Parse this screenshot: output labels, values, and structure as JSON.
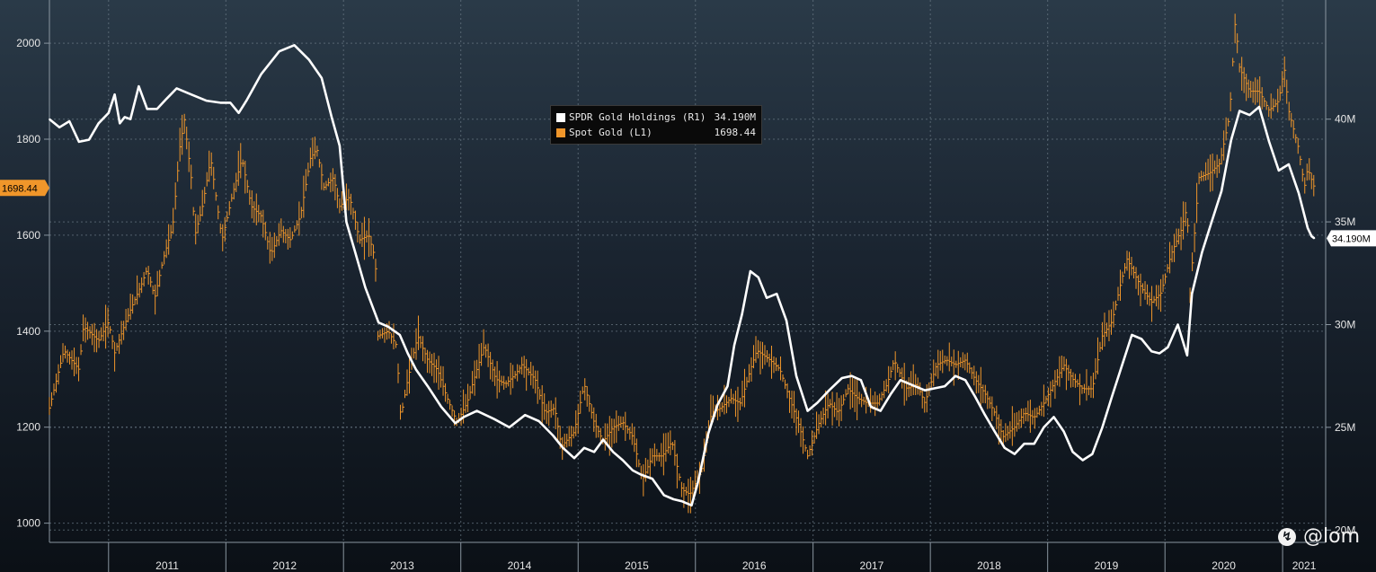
{
  "chart_data": {
    "type": "line",
    "x_axis": {
      "type": "date",
      "range": [
        "2010-07-01",
        "2021-05-15"
      ],
      "tick_labels": [
        "2011",
        "2012",
        "2013",
        "2014",
        "2015",
        "2016",
        "2017",
        "2018",
        "2019",
        "2020",
        "2021"
      ]
    },
    "y_left": {
      "range": [
        960,
        2090
      ],
      "ticks": [
        1000,
        1200,
        1400,
        1600,
        1800,
        2000
      ]
    },
    "y_right": {
      "range": [
        19.4,
        45.8
      ],
      "unit": "M",
      "ticks": [
        20,
        25,
        30,
        35,
        40
      ],
      "tick_labels": [
        "20M",
        "25M",
        "30M",
        "35M",
        "40M"
      ]
    },
    "grid": true,
    "legend": {
      "placement": "center-top",
      "entries": [
        {
          "label": "SPDR Gold Holdings (R1)",
          "value": "34.190M",
          "color": "#ffffff"
        },
        {
          "label": "Spot Gold (L1)",
          "value": "1698.44",
          "color": "#f0962a"
        }
      ]
    },
    "last_value_tags": {
      "left": "1698.44",
      "right": "34.190M"
    },
    "series": [
      {
        "name": "SPDR Gold Holdings (R1)",
        "axis": "right",
        "style": "line",
        "color": "#ffffff",
        "unit": "M",
        "points": [
          [
            "2010-07-01",
            40.0
          ],
          [
            "2010-08-01",
            39.6
          ],
          [
            "2010-09-01",
            39.9
          ],
          [
            "2010-10-01",
            38.9
          ],
          [
            "2010-11-01",
            39.0
          ],
          [
            "2010-12-01",
            39.8
          ],
          [
            "2011-01-01",
            40.3
          ],
          [
            "2011-01-20",
            41.2
          ],
          [
            "2011-02-05",
            39.8
          ],
          [
            "2011-02-20",
            40.1
          ],
          [
            "2011-03-10",
            40.0
          ],
          [
            "2011-04-05",
            41.6
          ],
          [
            "2011-05-01",
            40.5
          ],
          [
            "2011-06-01",
            40.5
          ],
          [
            "2011-07-01",
            41.0
          ],
          [
            "2011-08-01",
            41.5
          ],
          [
            "2011-09-15",
            41.2
          ],
          [
            "2011-11-01",
            40.9
          ],
          [
            "2011-12-15",
            40.8
          ],
          [
            "2012-01-15",
            40.8
          ],
          [
            "2012-02-10",
            40.3
          ],
          [
            "2012-03-05",
            40.9
          ],
          [
            "2012-04-20",
            42.2
          ],
          [
            "2012-06-15",
            43.3
          ],
          [
            "2012-08-01",
            43.6
          ],
          [
            "2012-09-15",
            42.9
          ],
          [
            "2012-10-25",
            42.0
          ],
          [
            "2012-11-25",
            40.1
          ],
          [
            "2012-12-20",
            38.7
          ],
          [
            "2013-01-10",
            35.0
          ],
          [
            "2013-02-05",
            33.6
          ],
          [
            "2013-03-10",
            31.8
          ],
          [
            "2013-04-20",
            30.1
          ],
          [
            "2013-05-20",
            29.9
          ],
          [
            "2013-06-25",
            29.5
          ],
          [
            "2013-07-20",
            28.6
          ],
          [
            "2013-08-15",
            27.8
          ],
          [
            "2013-09-20",
            27.0
          ],
          [
            "2013-11-01",
            26.0
          ],
          [
            "2013-12-15",
            25.2
          ],
          [
            "2014-01-10",
            25.5
          ],
          [
            "2014-02-20",
            25.8
          ],
          [
            "2014-04-15",
            25.4
          ],
          [
            "2014-06-01",
            25.0
          ],
          [
            "2014-07-20",
            25.6
          ],
          [
            "2014-09-01",
            25.3
          ],
          [
            "2014-10-15",
            24.6
          ],
          [
            "2014-11-15",
            24.0
          ],
          [
            "2014-12-20",
            23.5
          ],
          [
            "2015-01-20",
            24.0
          ],
          [
            "2015-02-20",
            23.8
          ],
          [
            "2015-03-20",
            24.4
          ],
          [
            "2015-04-20",
            23.8
          ],
          [
            "2015-05-20",
            23.4
          ],
          [
            "2015-06-20",
            22.9
          ],
          [
            "2015-07-15",
            22.7
          ],
          [
            "2015-08-20",
            22.5
          ],
          [
            "2015-09-25",
            21.7
          ],
          [
            "2015-10-25",
            21.5
          ],
          [
            "2015-11-20",
            21.4
          ],
          [
            "2015-12-20",
            21.2
          ],
          [
            "2016-01-10",
            22.4
          ],
          [
            "2016-02-10",
            24.7
          ],
          [
            "2016-03-10",
            26.1
          ],
          [
            "2016-04-10",
            27.0
          ],
          [
            "2016-05-01",
            29.0
          ],
          [
            "2016-05-25",
            30.5
          ],
          [
            "2016-06-20",
            32.6
          ],
          [
            "2016-07-15",
            32.3
          ],
          [
            "2016-08-10",
            31.3
          ],
          [
            "2016-09-10",
            31.5
          ],
          [
            "2016-10-10",
            30.2
          ],
          [
            "2016-11-10",
            27.5
          ],
          [
            "2016-12-15",
            25.8
          ],
          [
            "2017-01-15",
            26.2
          ],
          [
            "2017-02-20",
            26.8
          ],
          [
            "2017-04-01",
            27.4
          ],
          [
            "2017-05-01",
            27.5
          ],
          [
            "2017-05-30",
            27.3
          ],
          [
            "2017-06-30",
            26.0
          ],
          [
            "2017-07-30",
            25.8
          ],
          [
            "2017-08-30",
            26.6
          ],
          [
            "2017-09-30",
            27.3
          ],
          [
            "2017-10-30",
            27.1
          ],
          [
            "2017-12-15",
            26.8
          ],
          [
            "2018-01-15",
            26.9
          ],
          [
            "2018-02-15",
            27.0
          ],
          [
            "2018-03-20",
            27.5
          ],
          [
            "2018-04-20",
            27.3
          ],
          [
            "2018-05-20",
            26.5
          ],
          [
            "2018-06-20",
            25.6
          ],
          [
            "2018-07-20",
            24.8
          ],
          [
            "2018-08-20",
            24.0
          ],
          [
            "2018-09-20",
            23.7
          ],
          [
            "2018-10-20",
            24.2
          ],
          [
            "2018-11-20",
            24.2
          ],
          [
            "2018-12-20",
            25.0
          ],
          [
            "2019-01-20",
            25.5
          ],
          [
            "2019-02-20",
            24.8
          ],
          [
            "2019-03-20",
            23.8
          ],
          [
            "2019-04-20",
            23.4
          ],
          [
            "2019-05-20",
            23.7
          ],
          [
            "2019-06-20",
            25.0
          ],
          [
            "2019-07-20",
            26.5
          ],
          [
            "2019-08-20",
            28.0
          ],
          [
            "2019-09-20",
            29.5
          ],
          [
            "2019-10-20",
            29.3
          ],
          [
            "2019-11-20",
            28.7
          ],
          [
            "2019-12-15",
            28.6
          ],
          [
            "2020-01-10",
            28.9
          ],
          [
            "2020-02-10",
            30.0
          ],
          [
            "2020-03-10",
            28.5
          ],
          [
            "2020-03-25",
            31.5
          ],
          [
            "2020-04-25",
            33.5
          ],
          [
            "2020-05-25",
            35.0
          ],
          [
            "2020-06-25",
            36.5
          ],
          [
            "2020-07-25",
            39.0
          ],
          [
            "2020-08-20",
            40.4
          ],
          [
            "2020-09-20",
            40.2
          ],
          [
            "2020-10-20",
            40.6
          ],
          [
            "2020-11-20",
            38.9
          ],
          [
            "2020-12-20",
            37.5
          ],
          [
            "2021-01-20",
            37.8
          ],
          [
            "2021-02-20",
            36.4
          ],
          [
            "2021-03-20",
            34.7
          ],
          [
            "2021-04-01",
            34.3
          ],
          [
            "2021-04-10",
            34.2
          ]
        ]
      },
      {
        "name": "Spot Gold (L1)",
        "axis": "left",
        "style": "high-low bars",
        "color": "#f0962a",
        "points": [
          [
            "2010-07-01",
            1240
          ],
          [
            "2010-08-15",
            1360
          ],
          [
            "2010-10-01",
            1320
          ],
          [
            "2010-10-15",
            1410
          ],
          [
            "2010-12-01",
            1380
          ],
          [
            "2011-01-01",
            1420
          ],
          [
            "2011-01-20",
            1355
          ],
          [
            "2011-03-01",
            1430
          ],
          [
            "2011-04-15",
            1500
          ],
          [
            "2011-05-01",
            1530
          ],
          [
            "2011-05-25",
            1470
          ],
          [
            "2011-06-20",
            1550
          ],
          [
            "2011-07-20",
            1620
          ],
          [
            "2011-08-10",
            1780
          ],
          [
            "2011-08-25",
            1840
          ],
          [
            "2011-09-15",
            1720
          ],
          [
            "2011-09-27",
            1600
          ],
          [
            "2011-10-20",
            1660
          ],
          [
            "2011-11-15",
            1760
          ],
          [
            "2011-12-20",
            1590
          ],
          [
            "2012-01-20",
            1680
          ],
          [
            "2012-02-20",
            1760
          ],
          [
            "2012-03-20",
            1660
          ],
          [
            "2012-04-20",
            1640
          ],
          [
            "2012-05-20",
            1560
          ],
          [
            "2012-06-20",
            1610
          ],
          [
            "2012-07-20",
            1590
          ],
          [
            "2012-08-20",
            1640
          ],
          [
            "2012-09-20",
            1760
          ],
          [
            "2012-10-10",
            1780
          ],
          [
            "2012-11-01",
            1700
          ],
          [
            "2012-12-01",
            1720
          ],
          [
            "2012-12-20",
            1660
          ],
          [
            "2013-01-20",
            1680
          ],
          [
            "2013-02-20",
            1590
          ],
          [
            "2013-03-20",
            1600
          ],
          [
            "2013-04-10",
            1550
          ],
          [
            "2013-04-18",
            1390
          ],
          [
            "2013-05-20",
            1400
          ],
          [
            "2013-06-15",
            1370
          ],
          [
            "2013-06-28",
            1220
          ],
          [
            "2013-07-20",
            1300
          ],
          [
            "2013-08-20",
            1390
          ],
          [
            "2013-09-20",
            1340
          ],
          [
            "2013-10-20",
            1320
          ],
          [
            "2013-11-20",
            1260
          ],
          [
            "2013-12-20",
            1210
          ],
          [
            "2014-01-20",
            1250
          ],
          [
            "2014-02-20",
            1320
          ],
          [
            "2014-03-15",
            1370
          ],
          [
            "2014-04-20",
            1300
          ],
          [
            "2014-05-20",
            1290
          ],
          [
            "2014-06-20",
            1310
          ],
          [
            "2014-07-10",
            1330
          ],
          [
            "2014-08-20",
            1300
          ],
          [
            "2014-09-20",
            1230
          ],
          [
            "2014-10-20",
            1240
          ],
          [
            "2014-11-10",
            1160
          ],
          [
            "2014-12-20",
            1190
          ],
          [
            "2015-01-20",
            1290
          ],
          [
            "2015-02-20",
            1210
          ],
          [
            "2015-03-20",
            1170
          ],
          [
            "2015-04-20",
            1200
          ],
          [
            "2015-05-20",
            1210
          ],
          [
            "2015-06-20",
            1180
          ],
          [
            "2015-07-20",
            1090
          ],
          [
            "2015-08-20",
            1140
          ],
          [
            "2015-09-20",
            1140
          ],
          [
            "2015-10-20",
            1170
          ],
          [
            "2015-11-20",
            1070
          ],
          [
            "2015-12-15",
            1060
          ],
          [
            "2016-01-20",
            1110
          ],
          [
            "2016-02-20",
            1230
          ],
          [
            "2016-03-20",
            1240
          ],
          [
            "2016-04-20",
            1260
          ],
          [
            "2016-05-20",
            1250
          ],
          [
            "2016-06-20",
            1320
          ],
          [
            "2016-07-10",
            1360
          ],
          [
            "2016-08-20",
            1340
          ],
          [
            "2016-09-20",
            1320
          ],
          [
            "2016-10-20",
            1260
          ],
          [
            "2016-11-20",
            1200
          ],
          [
            "2016-12-15",
            1140
          ],
          [
            "2017-01-20",
            1210
          ],
          [
            "2017-02-20",
            1250
          ],
          [
            "2017-03-20",
            1230
          ],
          [
            "2017-04-20",
            1280
          ],
          [
            "2017-05-20",
            1260
          ],
          [
            "2017-06-20",
            1250
          ],
          [
            "2017-07-20",
            1250
          ],
          [
            "2017-08-20",
            1290
          ],
          [
            "2017-09-10",
            1340
          ],
          [
            "2017-10-20",
            1280
          ],
          [
            "2017-11-20",
            1290
          ],
          [
            "2017-12-15",
            1250
          ],
          [
            "2018-01-20",
            1330
          ],
          [
            "2018-02-20",
            1340
          ],
          [
            "2018-03-20",
            1330
          ],
          [
            "2018-04-20",
            1340
          ],
          [
            "2018-05-20",
            1300
          ],
          [
            "2018-06-20",
            1270
          ],
          [
            "2018-07-20",
            1230
          ],
          [
            "2018-08-15",
            1180
          ],
          [
            "2018-09-20",
            1200
          ],
          [
            "2018-10-20",
            1230
          ],
          [
            "2018-11-20",
            1220
          ],
          [
            "2018-12-20",
            1250
          ],
          [
            "2019-01-20",
            1290
          ],
          [
            "2019-02-20",
            1330
          ],
          [
            "2019-03-20",
            1300
          ],
          [
            "2019-04-20",
            1280
          ],
          [
            "2019-05-20",
            1280
          ],
          [
            "2019-06-20",
            1390
          ],
          [
            "2019-07-20",
            1420
          ],
          [
            "2019-08-20",
            1510
          ],
          [
            "2019-09-05",
            1550
          ],
          [
            "2019-10-20",
            1490
          ],
          [
            "2019-11-20",
            1460
          ],
          [
            "2019-12-20",
            1480
          ],
          [
            "2020-01-20",
            1560
          ],
          [
            "2020-02-20",
            1610
          ],
          [
            "2020-03-10",
            1660
          ],
          [
            "2020-03-19",
            1480
          ],
          [
            "2020-04-15",
            1720
          ],
          [
            "2020-05-20",
            1730
          ],
          [
            "2020-06-20",
            1750
          ],
          [
            "2020-07-20",
            1850
          ],
          [
            "2020-08-07",
            2050
          ],
          [
            "2020-08-20",
            1950
          ],
          [
            "2020-09-20",
            1900
          ],
          [
            "2020-10-20",
            1900
          ],
          [
            "2020-11-20",
            1860
          ],
          [
            "2020-12-20",
            1880
          ],
          [
            "2021-01-06",
            1950
          ],
          [
            "2021-01-20",
            1860
          ],
          [
            "2021-02-20",
            1780
          ],
          [
            "2021-03-10",
            1700
          ],
          [
            "2021-03-20",
            1740
          ],
          [
            "2021-04-10",
            1698.44
          ]
        ]
      }
    ]
  },
  "watermark": "@lom"
}
